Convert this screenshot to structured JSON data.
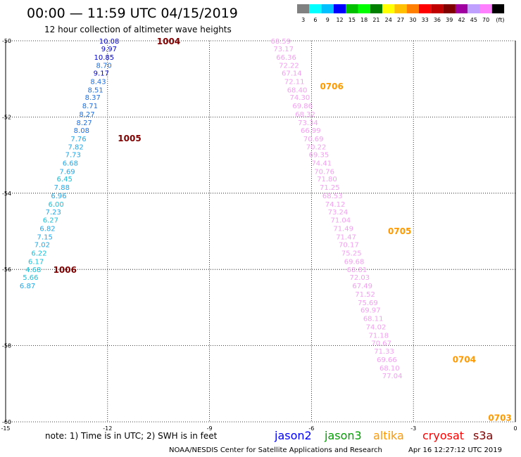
{
  "title": "00:00 — 11:59 UTC 04/15/2019",
  "subtitle": "12 hour collection of altimeter wave heights",
  "legend": {
    "colors": [
      "#808080",
      "#00ffff",
      "#00c0ff",
      "#0000ff",
      "#00c000",
      "#00ff00",
      "#008000",
      "#ffff00",
      "#ffc000",
      "#ff8000",
      "#ff0000",
      "#c00000",
      "#800000",
      "#a000a0",
      "#c0a0ff",
      "#ff80ff",
      "#000000"
    ],
    "labels": [
      "3",
      "6",
      "9",
      "12",
      "15",
      "18",
      "21",
      "24",
      "27",
      "30",
      "33",
      "36",
      "39",
      "42",
      "45",
      "70",
      "(ft)"
    ]
  },
  "axes": {
    "x_ticks": [
      -15,
      -12,
      -9,
      -6,
      -3,
      0
    ],
    "y_ticks": [
      -50,
      -52,
      -54,
      -56,
      -58,
      -60
    ]
  },
  "note": "note:  1) Time is in UTC;  2) SWH is in feet",
  "satellites": [
    {
      "name": "jason2",
      "color": "#0000ff"
    },
    {
      "name": "jason3",
      "color": "#00a000"
    },
    {
      "name": "altika",
      "color": "#ff9900"
    },
    {
      "name": "cryosat",
      "color": "#ff0000"
    },
    {
      "name": "s3a",
      "color": "#800000"
    }
  ],
  "footer_left": "NOAA/NESDIS Center for Satellite Applications and Research",
  "footer_right": "Apr 16 12:27:12 UTC 2019",
  "chart_data": {
    "type": "scatter",
    "xlim": [
      -15,
      0
    ],
    "ylim": [
      -60,
      -50
    ],
    "tracks": [
      {
        "satellite": "s3a",
        "times": [
          {
            "label": "1004",
            "lon": -10.55,
            "lat": -50.0
          },
          {
            "label": "1005",
            "lon": -11.7,
            "lat": -52.55
          },
          {
            "label": "1006",
            "lon": -13.6,
            "lat": -56.0
          }
        ],
        "points": [
          {
            "lon": -12.07,
            "lat": -50.0,
            "swh": "10.08"
          },
          {
            "lon": -12.14,
            "lat": -50.2,
            "swh": "9.97"
          },
          {
            "lon": -12.22,
            "lat": -50.42,
            "swh": "10.85"
          },
          {
            "lon": -12.29,
            "lat": -50.64,
            "swh": "8.70"
          },
          {
            "lon": -12.37,
            "lat": -50.84,
            "swh": "9.17"
          },
          {
            "lon": -12.46,
            "lat": -51.06,
            "swh": "8.43"
          },
          {
            "lon": -12.54,
            "lat": -51.28,
            "swh": "8.51"
          },
          {
            "lon": -12.62,
            "lat": -51.48,
            "swh": "8.37"
          },
          {
            "lon": -12.7,
            "lat": -51.7,
            "swh": "8.71"
          },
          {
            "lon": -12.79,
            "lat": -51.92,
            "swh": "8.27"
          },
          {
            "lon": -12.87,
            "lat": -52.14,
            "swh": "8.27"
          },
          {
            "lon": -12.95,
            "lat": -52.34,
            "swh": "8.08"
          },
          {
            "lon": -13.04,
            "lat": -52.56,
            "swh": "7.76"
          },
          {
            "lon": -13.12,
            "lat": -52.78,
            "swh": "7.82"
          },
          {
            "lon": -13.2,
            "lat": -52.98,
            "swh": "7.73"
          },
          {
            "lon": -13.28,
            "lat": -53.2,
            "swh": "6.68"
          },
          {
            "lon": -13.37,
            "lat": -53.42,
            "swh": "7.69"
          },
          {
            "lon": -13.45,
            "lat": -53.62,
            "swh": "6.45"
          },
          {
            "lon": -13.53,
            "lat": -53.84,
            "swh": "7.88"
          },
          {
            "lon": -13.62,
            "lat": -54.06,
            "swh": "6.96"
          },
          {
            "lon": -13.7,
            "lat": -54.28,
            "swh": "6.00"
          },
          {
            "lon": -13.78,
            "lat": -54.48,
            "swh": "7.23"
          },
          {
            "lon": -13.86,
            "lat": -54.7,
            "swh": "6.27"
          },
          {
            "lon": -13.95,
            "lat": -54.92,
            "swh": "6.82"
          },
          {
            "lon": -14.03,
            "lat": -55.14,
            "swh": "7.15"
          },
          {
            "lon": -14.11,
            "lat": -55.34,
            "swh": "7.02"
          },
          {
            "lon": -14.2,
            "lat": -55.56,
            "swh": "6.22"
          },
          {
            "lon": -14.29,
            "lat": -55.78,
            "swh": "6.17"
          },
          {
            "lon": -14.37,
            "lat": -56.0,
            "swh": "4.68"
          },
          {
            "lon": -14.45,
            "lat": -56.2,
            "swh": "5.66"
          },
          {
            "lon": -14.54,
            "lat": -56.42,
            "swh": "6.87"
          }
        ]
      },
      {
        "satellite": "altika",
        "times": [
          {
            "label": "0706",
            "lon": -5.75,
            "lat": -51.18
          },
          {
            "label": "0705",
            "lon": -3.75,
            "lat": -54.98
          },
          {
            "label": "0704",
            "lon": -1.85,
            "lat": -58.35
          },
          {
            "label": "0703",
            "lon": -0.8,
            "lat": -59.88
          }
        ],
        "points": [
          {
            "lon": -7.02,
            "lat": -50.0,
            "swh": "68.59"
          },
          {
            "lon": -6.94,
            "lat": -50.2,
            "swh": "73.17"
          },
          {
            "lon": -6.86,
            "lat": -50.42,
            "swh": "66.36"
          },
          {
            "lon": -6.78,
            "lat": -50.64,
            "swh": "72.22"
          },
          {
            "lon": -6.7,
            "lat": -50.84,
            "swh": "67.14"
          },
          {
            "lon": -6.62,
            "lat": -51.06,
            "swh": "72.11"
          },
          {
            "lon": -6.54,
            "lat": -51.28,
            "swh": "68.40"
          },
          {
            "lon": -6.46,
            "lat": -51.48,
            "swh": "74.30"
          },
          {
            "lon": -6.38,
            "lat": -51.7,
            "swh": "69.86"
          },
          {
            "lon": -6.3,
            "lat": -51.92,
            "swh": "68.32"
          },
          {
            "lon": -6.22,
            "lat": -52.14,
            "swh": "73.34"
          },
          {
            "lon": -6.14,
            "lat": -52.34,
            "swh": "66.99"
          },
          {
            "lon": -6.06,
            "lat": -52.56,
            "swh": "70.69"
          },
          {
            "lon": -5.98,
            "lat": -52.78,
            "swh": "70.22"
          },
          {
            "lon": -5.9,
            "lat": -52.98,
            "swh": "69.35"
          },
          {
            "lon": -5.82,
            "lat": -53.2,
            "swh": "74.41"
          },
          {
            "lon": -5.74,
            "lat": -53.42,
            "swh": "70.76"
          },
          {
            "lon": -5.66,
            "lat": -53.62,
            "swh": "71.80"
          },
          {
            "lon": -5.58,
            "lat": -53.84,
            "swh": "71.25"
          },
          {
            "lon": -5.5,
            "lat": -54.06,
            "swh": "68.53"
          },
          {
            "lon": -5.42,
            "lat": -54.28,
            "swh": "74.12"
          },
          {
            "lon": -5.34,
            "lat": -54.48,
            "swh": "73.24"
          },
          {
            "lon": -5.26,
            "lat": -54.7,
            "swh": "71.04"
          },
          {
            "lon": -5.18,
            "lat": -54.92,
            "swh": "71.49"
          },
          {
            "lon": -5.1,
            "lat": -55.14,
            "swh": "71.47"
          },
          {
            "lon": -5.02,
            "lat": -55.34,
            "swh": "70.17"
          },
          {
            "lon": -4.94,
            "lat": -55.56,
            "swh": "75.25"
          },
          {
            "lon": -4.86,
            "lat": -55.78,
            "swh": "69.68"
          },
          {
            "lon": -4.78,
            "lat": -56.0,
            "swh": "68.81"
          },
          {
            "lon": -4.7,
            "lat": -56.2,
            "swh": "72.03"
          },
          {
            "lon": -4.62,
            "lat": -56.42,
            "swh": "67.49"
          },
          {
            "lon": -4.54,
            "lat": -56.64,
            "swh": "71.52"
          },
          {
            "lon": -4.46,
            "lat": -56.86,
            "swh": "75.69"
          },
          {
            "lon": -4.38,
            "lat": -57.06,
            "swh": "69.97"
          },
          {
            "lon": -4.3,
            "lat": -57.28,
            "swh": "68.11"
          },
          {
            "lon": -4.22,
            "lat": -57.5,
            "swh": "74.02"
          },
          {
            "lon": -4.14,
            "lat": -57.72,
            "swh": "71.18"
          },
          {
            "lon": -4.06,
            "lat": -57.92,
            "swh": "70.67"
          },
          {
            "lon": -3.98,
            "lat": -58.14,
            "swh": "71.33"
          },
          {
            "lon": -3.9,
            "lat": -58.36,
            "swh": "69.66"
          },
          {
            "lon": -3.82,
            "lat": -58.58,
            "swh": "68.10"
          },
          {
            "lon": -3.74,
            "lat": -58.78,
            "swh": "77.04"
          }
        ]
      }
    ]
  }
}
